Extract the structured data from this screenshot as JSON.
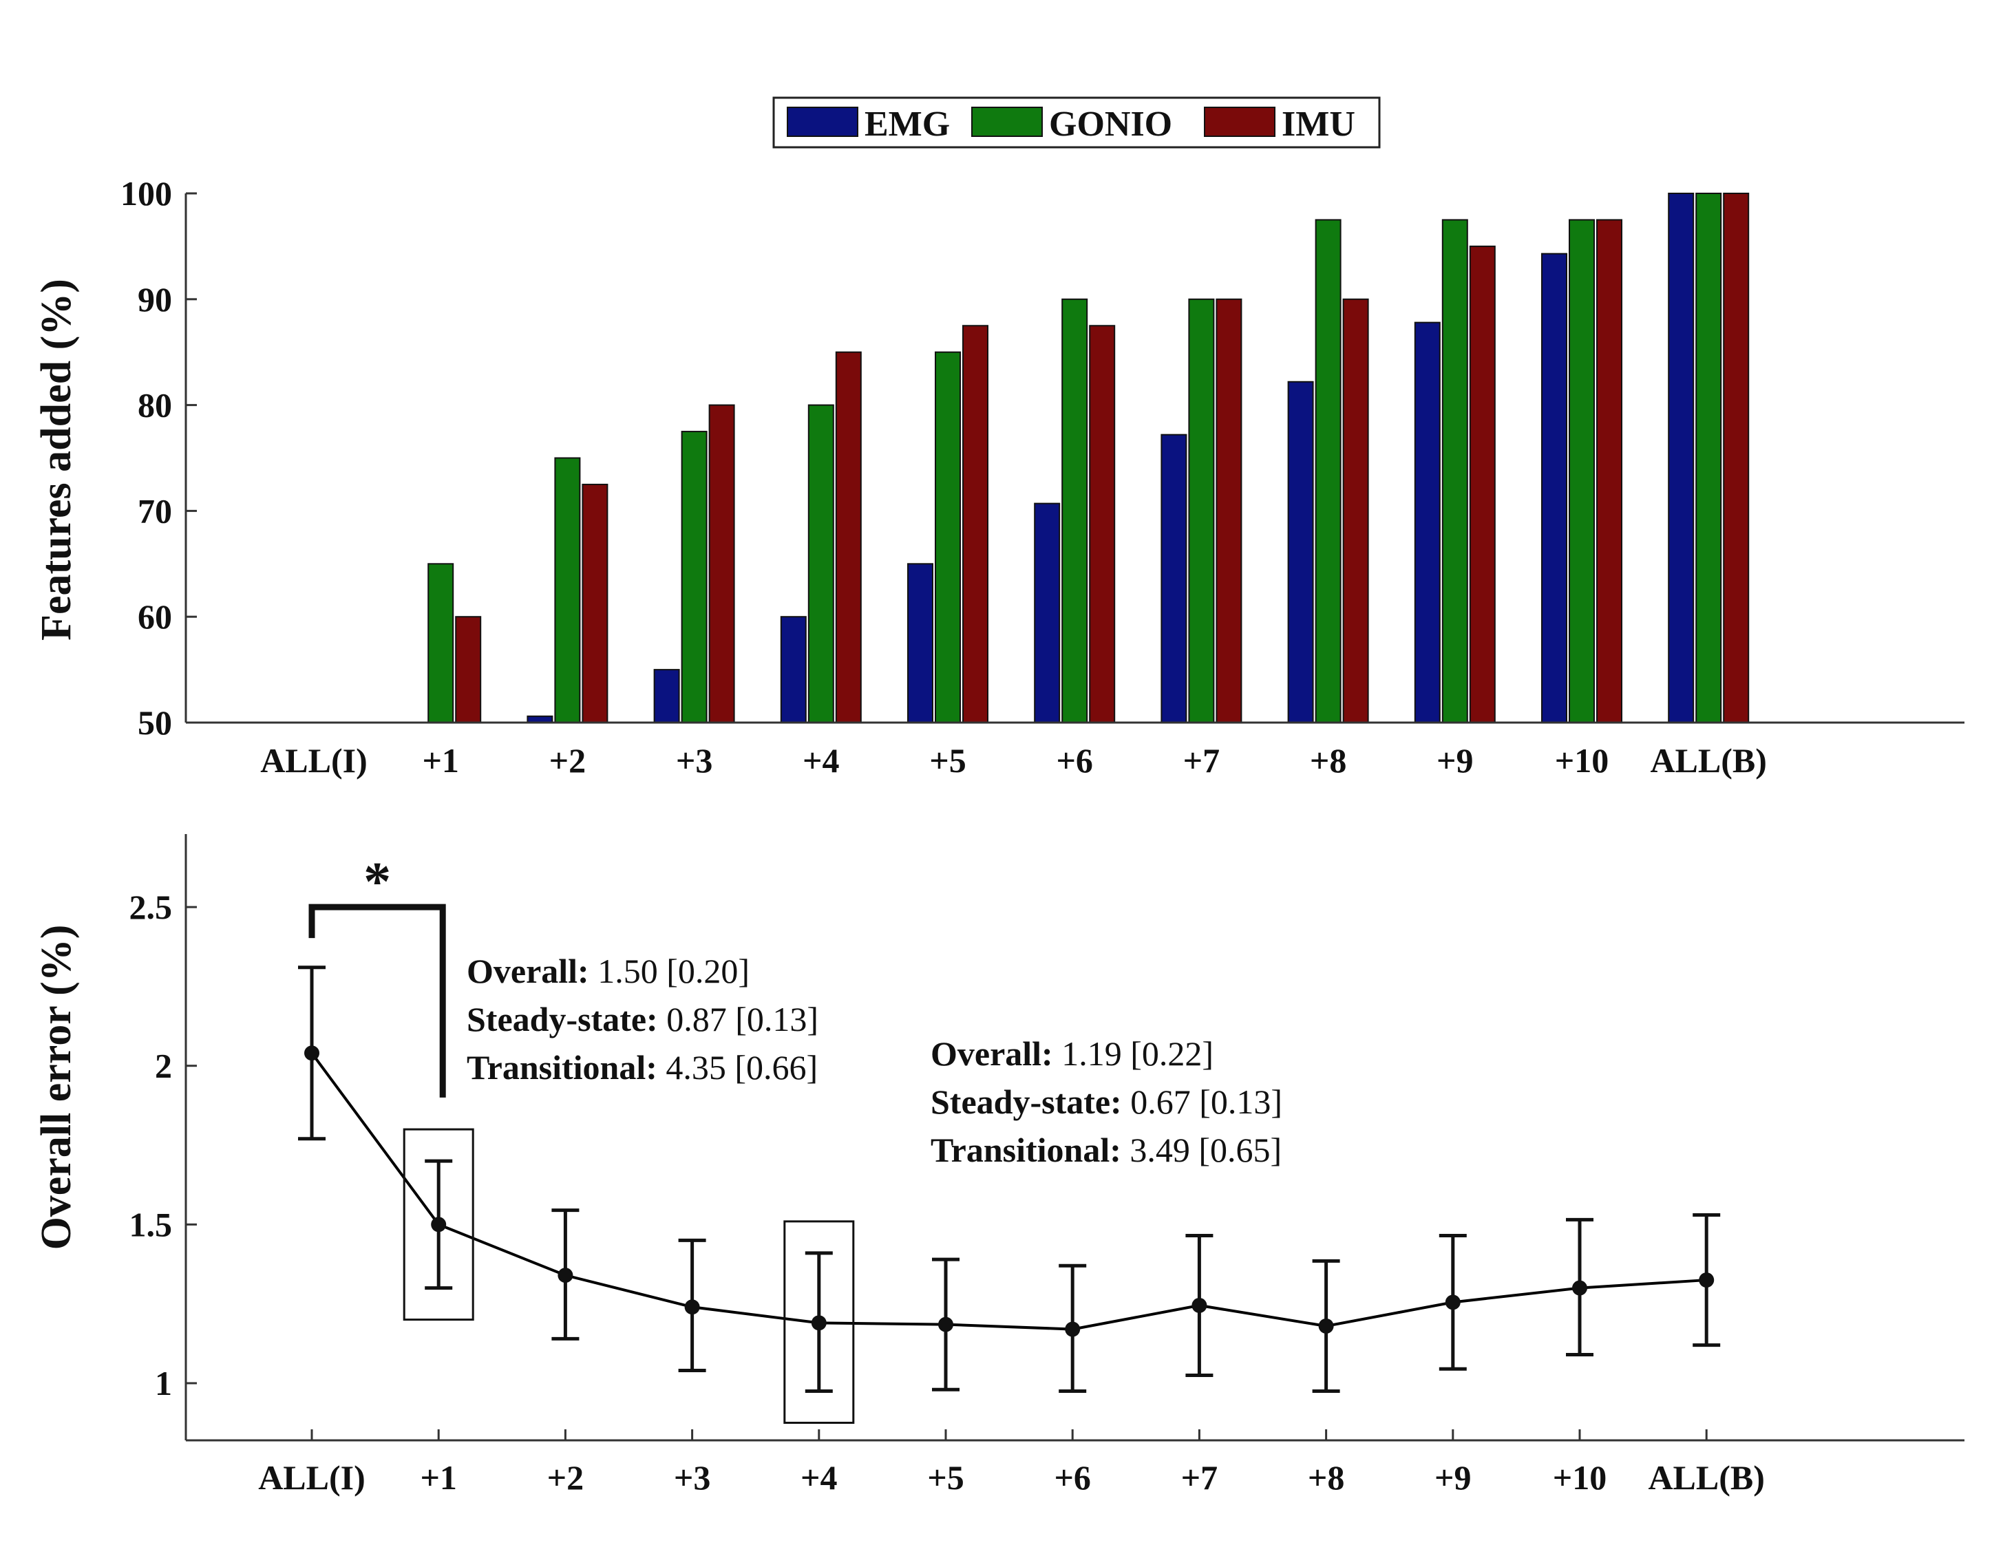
{
  "chart_data": [
    {
      "type": "bar",
      "ylabel": "Features added (%)",
      "xlabel": "",
      "ylim": [
        50,
        100
      ],
      "yticks": [
        50,
        60,
        70,
        80,
        90,
        100
      ],
      "categories": [
        "ALL(I)",
        "+1",
        "+2",
        "+3",
        "+4",
        "+5",
        "+6",
        "+7",
        "+8",
        "+9",
        "+10",
        "ALL(B)"
      ],
      "legend_position": "top-center",
      "series": [
        {
          "name": "EMG",
          "color": "#0a1280",
          "values": [
            50,
            50,
            50.6,
            55,
            60,
            65,
            70.7,
            77.2,
            82.2,
            87.8,
            94.3,
            100
          ]
        },
        {
          "name": "GONIO",
          "color": "#0f7a0f",
          "values": [
            50,
            65,
            75,
            77.5,
            80,
            85,
            90,
            90,
            97.5,
            97.5,
            97.5,
            100
          ]
        },
        {
          "name": "IMU",
          "color": "#7a0a0a",
          "values": [
            50,
            60,
            72.5,
            80,
            85,
            87.5,
            87.5,
            90,
            90,
            95,
            97.5,
            100
          ]
        }
      ]
    },
    {
      "type": "line",
      "ylabel": "Overall error (%)",
      "xlabel": "",
      "ylim": [
        0.82,
        2.73
      ],
      "yticks": [
        1,
        1.5,
        2,
        2.5
      ],
      "ytick_labels": [
        "1",
        "1.5",
        "2",
        "2.5"
      ],
      "categories": [
        "ALL(I)",
        "+1",
        "+2",
        "+3",
        "+4",
        "+5",
        "+6",
        "+7",
        "+8",
        "+9",
        "+10",
        "ALL(B)"
      ],
      "series": [
        {
          "color": "#000000",
          "values": [
            2.04,
            1.5,
            1.34,
            1.24,
            1.19,
            1.185,
            1.17,
            1.245,
            1.18,
            1.255,
            1.3,
            1.325
          ],
          "error_low": [
            1.77,
            1.3,
            1.14,
            1.04,
            0.975,
            0.98,
            0.975,
            1.025,
            0.975,
            1.045,
            1.09,
            1.12
          ],
          "error_high": [
            2.31,
            1.7,
            1.545,
            1.45,
            1.41,
            1.39,
            1.37,
            1.465,
            1.385,
            1.465,
            1.515,
            1.53
          ]
        }
      ],
      "significance_marker": "*",
      "significance_between": [
        "ALL(I)",
        "+1"
      ],
      "highlighted_points": [
        "+1",
        "+4"
      ],
      "annotations": [
        {
          "target": "+1",
          "lines": [
            {
              "label": "Overall:",
              "value": "1.50 [0.20]"
            },
            {
              "label": "Steady-state:",
              "value": "0.87 [0.13]"
            },
            {
              "label": "Transitional:",
              "value": "4.35 [0.66]"
            }
          ]
        },
        {
          "target": "+4",
          "lines": [
            {
              "label": "Overall:",
              "value": "1.19 [0.22]"
            },
            {
              "label": "Steady-state:",
              "value": "0.67 [0.13]"
            },
            {
              "label": "Transitional:",
              "value": "3.49 [0.65]"
            }
          ]
        }
      ]
    }
  ]
}
